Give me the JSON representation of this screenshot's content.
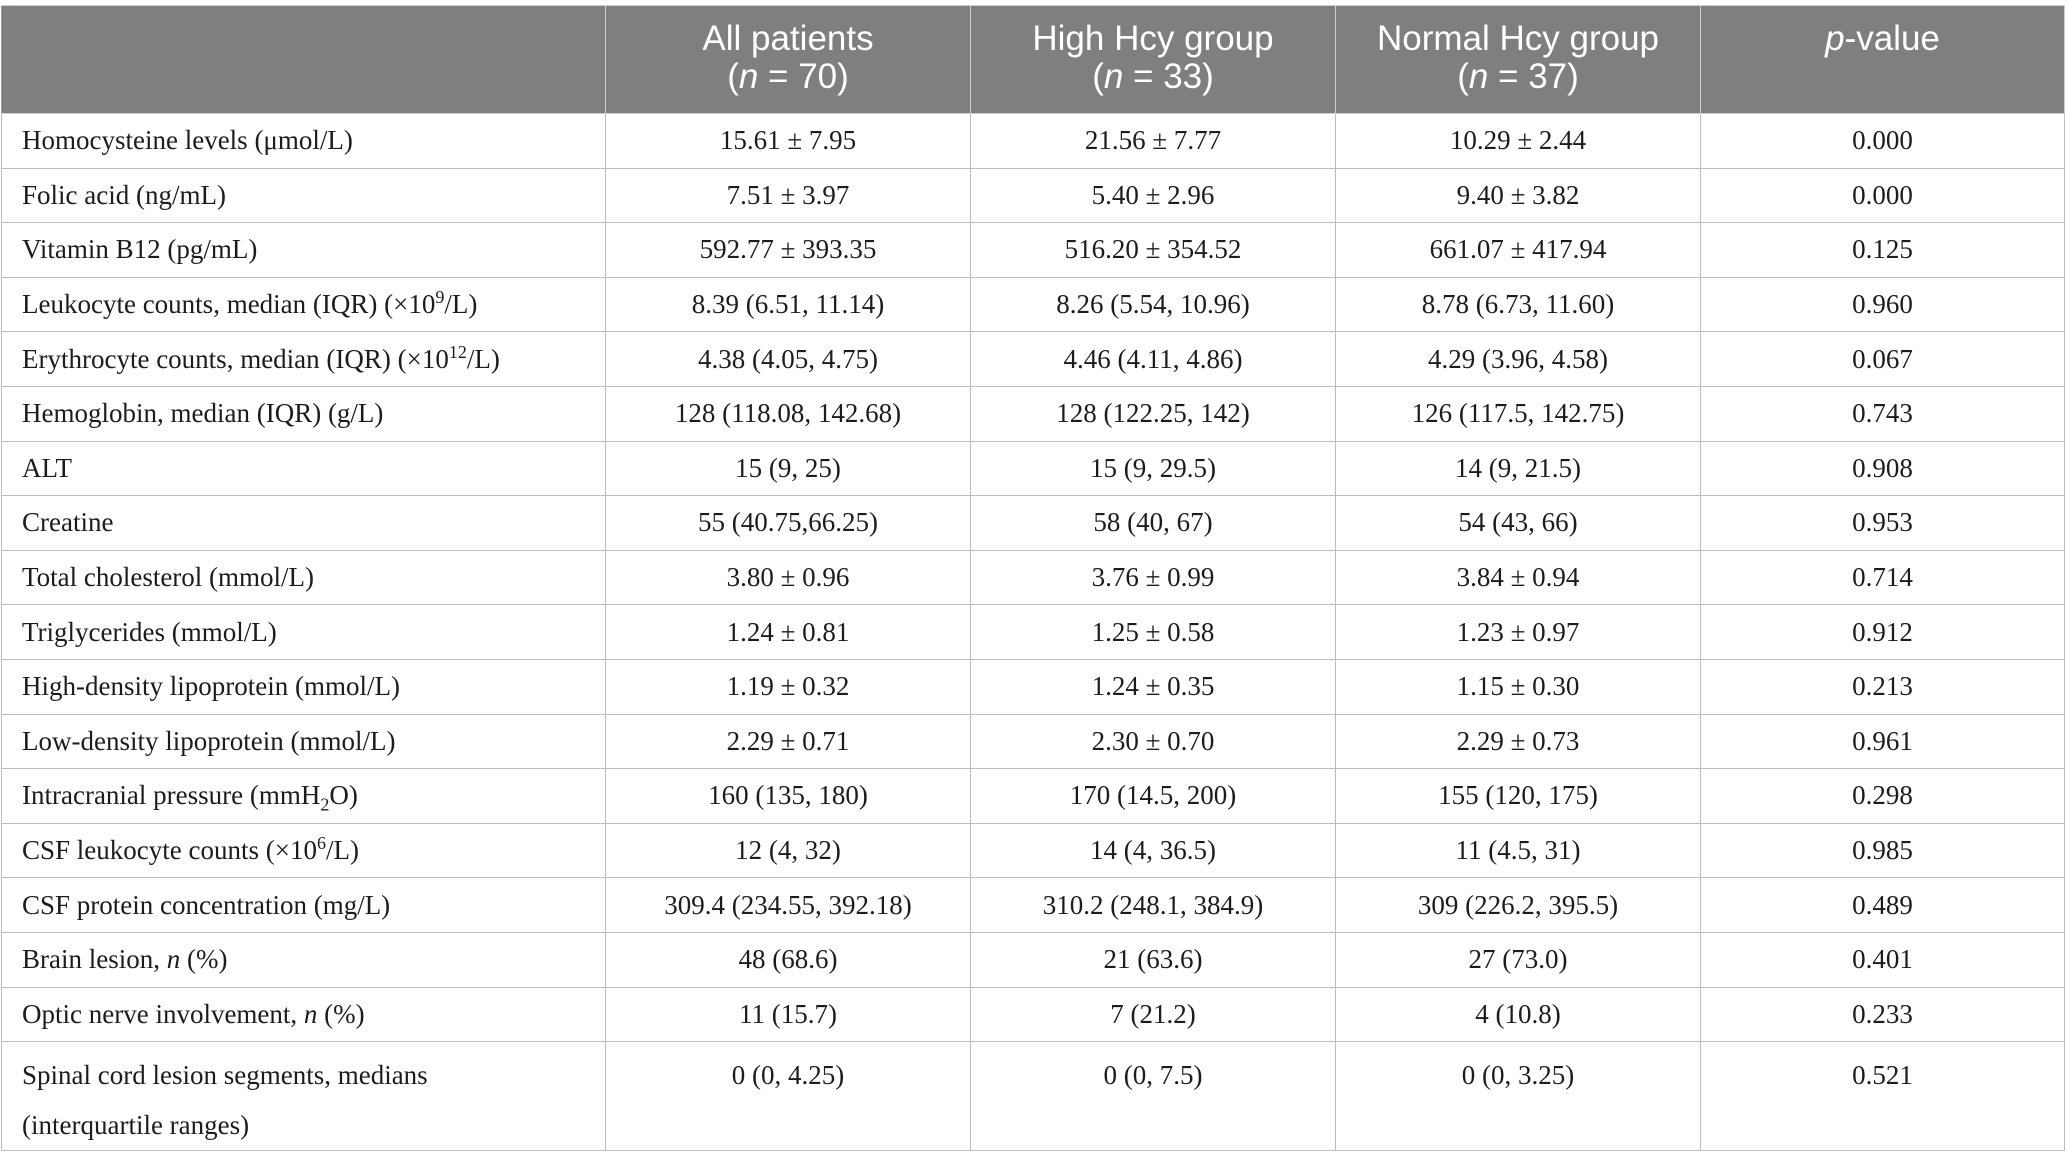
{
  "table": {
    "headers": [
      {
        "line1": "",
        "line2": ""
      },
      {
        "line1": "All patients",
        "line2": "(n = 70)"
      },
      {
        "line1": "High Hcy group",
        "line2": "(n = 33)"
      },
      {
        "line1": "Normal Hcy group",
        "line2": "(n = 37)"
      },
      {
        "line1": "p-value",
        "line2": ""
      }
    ],
    "rows": [
      {
        "label": "Homocysteine levels (μmol/L)",
        "all": "15.61 ± 7.95",
        "high": "21.56 ± 7.77",
        "normal": "10.29 ± 2.44",
        "p": "0.000"
      },
      {
        "label": "Folic acid (ng/mL)",
        "all": "7.51 ± 3.97",
        "high": "5.40 ± 2.96",
        "normal": "9.40 ± 3.82",
        "p": "0.000"
      },
      {
        "label": "Vitamin B12 (pg/mL)",
        "all": "592.77 ± 393.35",
        "high": "516.20 ± 354.52",
        "normal": "661.07 ± 417.94",
        "p": "0.125"
      },
      {
        "label_pre": "Leukocyte counts, median (IQR) (×10",
        "label_sup": "9",
        "label_post": "/L)",
        "all": "8.39 (6.51, 11.14)",
        "high": "8.26 (5.54, 10.96)",
        "normal": "8.78 (6.73, 11.60)",
        "p": "0.960"
      },
      {
        "label_pre": "Erythrocyte counts, median (IQR) (×10",
        "label_sup": "12",
        "label_post": "/L)",
        "all": "4.38 (4.05, 4.75)",
        "high": "4.46 (4.11, 4.86)",
        "normal": "4.29 (3.96, 4.58)",
        "p": "0.067"
      },
      {
        "label": "Hemoglobin, median (IQR) (g/L)",
        "all": "128 (118.08, 142.68)",
        "high": "128 (122.25, 142)",
        "normal": "126 (117.5, 142.75)",
        "p": "0.743"
      },
      {
        "label": "ALT",
        "all": "15 (9, 25)",
        "high": "15 (9, 29.5)",
        "normal": "14 (9, 21.5)",
        "p": "0.908"
      },
      {
        "label": "Creatine",
        "all": "55 (40.75,66.25)",
        "high": "58 (40, 67)",
        "normal": "54 (43, 66)",
        "p": "0.953"
      },
      {
        "label": "Total cholesterol (mmol/L)",
        "all": "3.80 ± 0.96",
        "high": "3.76 ± 0.99",
        "normal": "3.84 ± 0.94",
        "p": "0.714"
      },
      {
        "label": "Triglycerides (mmol/L)",
        "all": "1.24 ± 0.81",
        "high": "1.25 ± 0.58",
        "normal": "1.23 ± 0.97",
        "p": "0.912"
      },
      {
        "label": "High-density lipoprotein (mmol/L)",
        "all": "1.19 ± 0.32",
        "high": "1.24 ± 0.35",
        "normal": "1.15 ± 0.30",
        "p": "0.213"
      },
      {
        "label": "Low-density lipoprotein (mmol/L)",
        "all": "2.29 ± 0.71",
        "high": "2.30 ± 0.70",
        "normal": "2.29 ± 0.73",
        "p": "0.961"
      },
      {
        "label_pre": "Intracranial pressure (mmH",
        "label_sub": "2",
        "label_post": "O)",
        "all": "160 (135, 180)",
        "high": "170 (14.5, 200)",
        "normal": "155 (120, 175)",
        "p": "0.298"
      },
      {
        "label_pre": "CSF leukocyte counts (×10",
        "label_sup": "6",
        "label_post": "/L)",
        "all": "12 (4, 32)",
        "high": "14 (4, 36.5)",
        "normal": "11 (4.5, 31)",
        "p": "0.985"
      },
      {
        "label": "CSF protein concentration (mg/L)",
        "all": "309.4 (234.55, 392.18)",
        "high": "310.2 (248.1, 384.9)",
        "normal": "309 (226.2, 395.5)",
        "p": "0.489"
      },
      {
        "label_pre": "Brain lesion, ",
        "label_italic": "n",
        "label_post": " (%)",
        "all": "48 (68.6)",
        "high": "21 (63.6)",
        "normal": "27 (73.0)",
        "p": "0.401"
      },
      {
        "label_pre": "Optic nerve involvement, ",
        "label_italic": "n",
        "label_post": " (%)",
        "all": "11 (15.7)",
        "high": "7 (21.2)",
        "normal": "4 (10.8)",
        "p": "0.233"
      },
      {
        "label_line1": "Spinal cord lesion segments, medians",
        "label_line2": "(interquartile ranges)",
        "all": "0 (0, 4.25)",
        "high": "0 (0, 7.5)",
        "normal": "0 (0, 3.25)",
        "p": "0.521"
      }
    ]
  },
  "colors": {
    "header_bg": "#7e807f",
    "header_text": "#ffffff",
    "grid": "#bdbdbd",
    "body_text": "#1c1c1c"
  }
}
